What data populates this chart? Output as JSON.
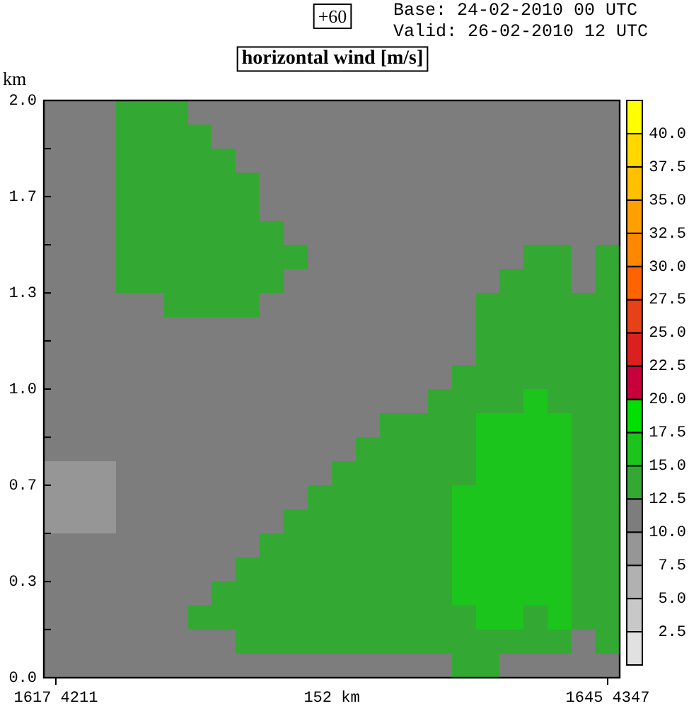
{
  "chart_data": {
    "type": "heatmap",
    "title": "horizontal wind [m/s]",
    "annotations": [
      "+60",
      "Base: 24-02-2010 00 UTC",
      "Valid: 26-02-2010 12 UTC"
    ],
    "xlabel": "152 km",
    "ylabel": "km",
    "categories": [
      "1617 4211",
      null,
      null,
      null,
      null,
      null,
      null,
      null,
      null,
      null,
      null,
      null,
      null,
      null,
      null,
      null,
      null,
      null,
      null,
      null,
      null,
      null,
      null,
      "1645 4347"
    ],
    "ylim": [
      0,
      2
    ],
    "yticks": [
      {
        "value": 0,
        "label": "0.0"
      },
      {
        "value": 0.167,
        "label": null
      },
      {
        "value": 0.333,
        "label": "0.3"
      },
      {
        "value": 0.5,
        "label": null
      },
      {
        "value": 0.667,
        "label": "0.7"
      },
      {
        "value": 0.833,
        "label": null
      },
      {
        "value": 1,
        "label": "1.0"
      },
      {
        "value": 1.167,
        "label": null
      },
      {
        "value": 1.333,
        "label": "1.3"
      },
      {
        "value": 1.5,
        "label": null
      },
      {
        "value": 1.667,
        "label": "1.7"
      },
      {
        "value": 1.833,
        "label": null
      },
      {
        "value": 2,
        "label": "2.0"
      }
    ],
    "clim": [
      0,
      42.5
    ],
    "cticks": [
      2.5,
      {
        "value": 5,
        "label": "5.0"
      },
      7.5,
      {
        "value": 10,
        "label": "10.0"
      },
      12.5,
      {
        "value": 15,
        "label": "15.0"
      },
      17.5,
      {
        "value": 20,
        "label": "20.0"
      },
      22.5,
      {
        "value": 25,
        "label": "25.0"
      },
      27.5,
      {
        "value": 30,
        "label": "30.0"
      },
      32.5,
      {
        "value": 35,
        "label": "35.0"
      },
      37.5,
      {
        "value": 40,
        "label": "40.0"
      }
    ],
    "cells": [
      [
        11,
        11,
        11,
        14,
        14,
        14,
        11,
        11,
        11,
        11,
        11,
        11,
        11,
        11,
        11,
        11,
        11,
        11,
        11,
        11,
        11,
        11,
        11,
        11
      ],
      [
        11,
        11,
        11,
        14,
        14,
        14,
        14,
        11,
        11,
        11,
        11,
        11,
        11,
        11,
        11,
        11,
        11,
        11,
        11,
        11,
        11,
        11,
        11,
        11
      ],
      [
        11,
        11,
        11,
        14,
        14,
        14,
        14,
        14,
        11,
        11,
        11,
        11,
        11,
        11,
        11,
        11,
        11,
        11,
        11,
        11,
        11,
        11,
        11,
        11
      ],
      [
        11,
        11,
        11,
        14,
        14,
        14,
        14,
        14,
        14,
        11,
        11,
        11,
        11,
        11,
        11,
        11,
        11,
        11,
        11,
        11,
        11,
        11,
        11,
        11
      ],
      [
        11,
        11,
        11,
        14,
        14,
        14,
        14,
        14,
        14,
        11,
        11,
        11,
        11,
        11,
        11,
        11,
        11,
        11,
        11,
        11,
        11,
        11,
        11,
        11
      ],
      [
        11,
        11,
        11,
        14,
        14,
        14,
        14,
        14,
        14,
        14,
        11,
        11,
        11,
        11,
        11,
        11,
        11,
        11,
        11,
        11,
        11,
        11,
        11,
        11
      ],
      [
        11,
        11,
        11,
        14,
        14,
        14,
        14,
        14,
        14,
        14,
        14,
        11,
        11,
        11,
        11,
        11,
        11,
        11,
        11,
        11,
        14,
        14,
        11,
        14
      ],
      [
        11,
        11,
        11,
        14,
        14,
        14,
        14,
        14,
        14,
        14,
        11,
        11,
        11,
        11,
        11,
        11,
        11,
        11,
        11,
        14,
        14,
        14,
        11,
        14
      ],
      [
        11,
        11,
        11,
        11,
        11,
        14,
        14,
        14,
        14,
        11,
        11,
        11,
        11,
        11,
        11,
        11,
        11,
        11,
        14,
        14,
        14,
        14,
        14,
        14
      ],
      [
        11,
        11,
        11,
        11,
        11,
        11,
        11,
        11,
        11,
        11,
        11,
        11,
        11,
        11,
        11,
        11,
        11,
        11,
        14,
        14,
        14,
        14,
        14,
        14
      ],
      [
        11,
        11,
        11,
        11,
        11,
        11,
        11,
        11,
        11,
        11,
        11,
        11,
        11,
        11,
        11,
        11,
        11,
        11,
        14,
        14,
        14,
        14,
        14,
        14
      ],
      [
        11,
        11,
        11,
        11,
        11,
        11,
        11,
        11,
        11,
        11,
        11,
        11,
        11,
        11,
        11,
        11,
        11,
        14,
        14,
        14,
        14,
        14,
        14,
        14
      ],
      [
        11,
        11,
        11,
        11,
        11,
        11,
        11,
        11,
        11,
        11,
        11,
        11,
        11,
        11,
        11,
        11,
        14,
        14,
        14,
        14,
        16,
        14,
        14,
        14
      ],
      [
        11,
        11,
        11,
        11,
        11,
        11,
        11,
        11,
        11,
        11,
        11,
        11,
        11,
        11,
        14,
        14,
        14,
        14,
        16,
        16,
        16,
        16,
        14,
        14
      ],
      [
        11,
        11,
        11,
        11,
        11,
        11,
        11,
        11,
        11,
        11,
        11,
        11,
        11,
        14,
        14,
        14,
        14,
        14,
        16,
        16,
        16,
        16,
        14,
        14
      ],
      [
        9,
        9,
        9,
        11,
        11,
        11,
        11,
        11,
        11,
        11,
        11,
        11,
        14,
        14,
        14,
        14,
        14,
        14,
        16,
        16,
        16,
        16,
        14,
        14
      ],
      [
        9,
        9,
        9,
        11,
        11,
        11,
        11,
        11,
        11,
        11,
        11,
        14,
        14,
        14,
        14,
        14,
        14,
        16,
        16,
        16,
        16,
        16,
        14,
        14
      ],
      [
        9,
        9,
        9,
        11,
        11,
        11,
        11,
        11,
        11,
        11,
        14,
        14,
        14,
        14,
        14,
        14,
        14,
        16,
        16,
        16,
        16,
        16,
        14,
        14
      ],
      [
        11,
        11,
        11,
        11,
        11,
        11,
        11,
        11,
        11,
        14,
        14,
        14,
        14,
        14,
        14,
        14,
        14,
        16,
        16,
        16,
        16,
        16,
        14,
        14
      ],
      [
        11,
        11,
        11,
        11,
        11,
        11,
        11,
        11,
        14,
        14,
        14,
        14,
        14,
        14,
        14,
        14,
        14,
        16,
        16,
        16,
        16,
        16,
        14,
        14
      ],
      [
        11,
        11,
        11,
        11,
        11,
        11,
        11,
        14,
        14,
        14,
        14,
        14,
        14,
        14,
        14,
        14,
        14,
        16,
        16,
        16,
        16,
        16,
        14,
        14
      ],
      [
        11,
        11,
        11,
        11,
        11,
        11,
        14,
        14,
        14,
        14,
        14,
        14,
        14,
        14,
        14,
        14,
        14,
        14,
        16,
        16,
        14,
        16,
        14,
        14
      ],
      [
        11,
        11,
        11,
        11,
        11,
        11,
        11,
        11,
        14,
        14,
        14,
        14,
        14,
        14,
        14,
        14,
        14,
        14,
        14,
        14,
        14,
        14,
        11,
        14
      ],
      [
        11,
        11,
        11,
        11,
        11,
        11,
        11,
        11,
        11,
        11,
        11,
        11,
        11,
        11,
        11,
        11,
        11,
        14,
        14,
        11,
        11,
        11,
        11,
        11
      ]
    ]
  }
}
